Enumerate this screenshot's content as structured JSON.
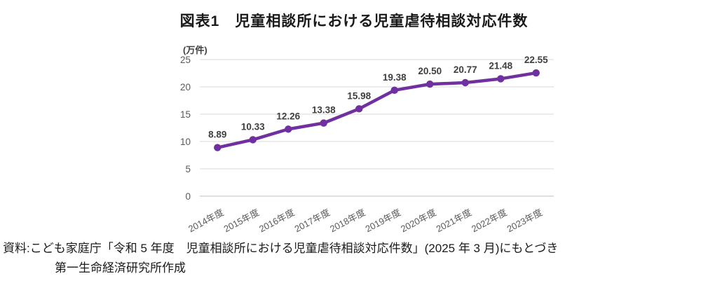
{
  "chart_data": {
    "type": "line",
    "title": "図表1　児童相談所における児童虐待相談対応件数",
    "unit_label": "(万件)",
    "categories": [
      "2014年度",
      "2015年度",
      "2016年度",
      "2017年度",
      "2018年度",
      "2019年度",
      "2020年度",
      "2021年度",
      "2022年度",
      "2023年度"
    ],
    "values": [
      8.89,
      10.33,
      12.26,
      13.38,
      15.98,
      19.38,
      20.5,
      20.77,
      21.48,
      22.55
    ],
    "value_labels": [
      "8.89",
      "10.33",
      "12.26",
      "13.38",
      "15.98",
      "19.38",
      "20.50",
      "20.77",
      "21.48",
      "22.55"
    ],
    "ylim": [
      0,
      25
    ],
    "ytick_step": 5,
    "yticks": [
      "0",
      "5",
      "10",
      "15",
      "20",
      "25"
    ],
    "grid": true,
    "legend_position": "none",
    "line_color": "#7030A0",
    "gridline_color": "#d9d9d9",
    "axisline_color": "#bfbfbf",
    "xlabel": "",
    "ylabel": "(万件)"
  },
  "source": {
    "line1": "資料:こども家庭庁「令和 5 年度　児童相談所における児童虐待相談対応件数」(2025 年 3 月)にもとづき",
    "line2": "第一生命経済研究所作成"
  }
}
